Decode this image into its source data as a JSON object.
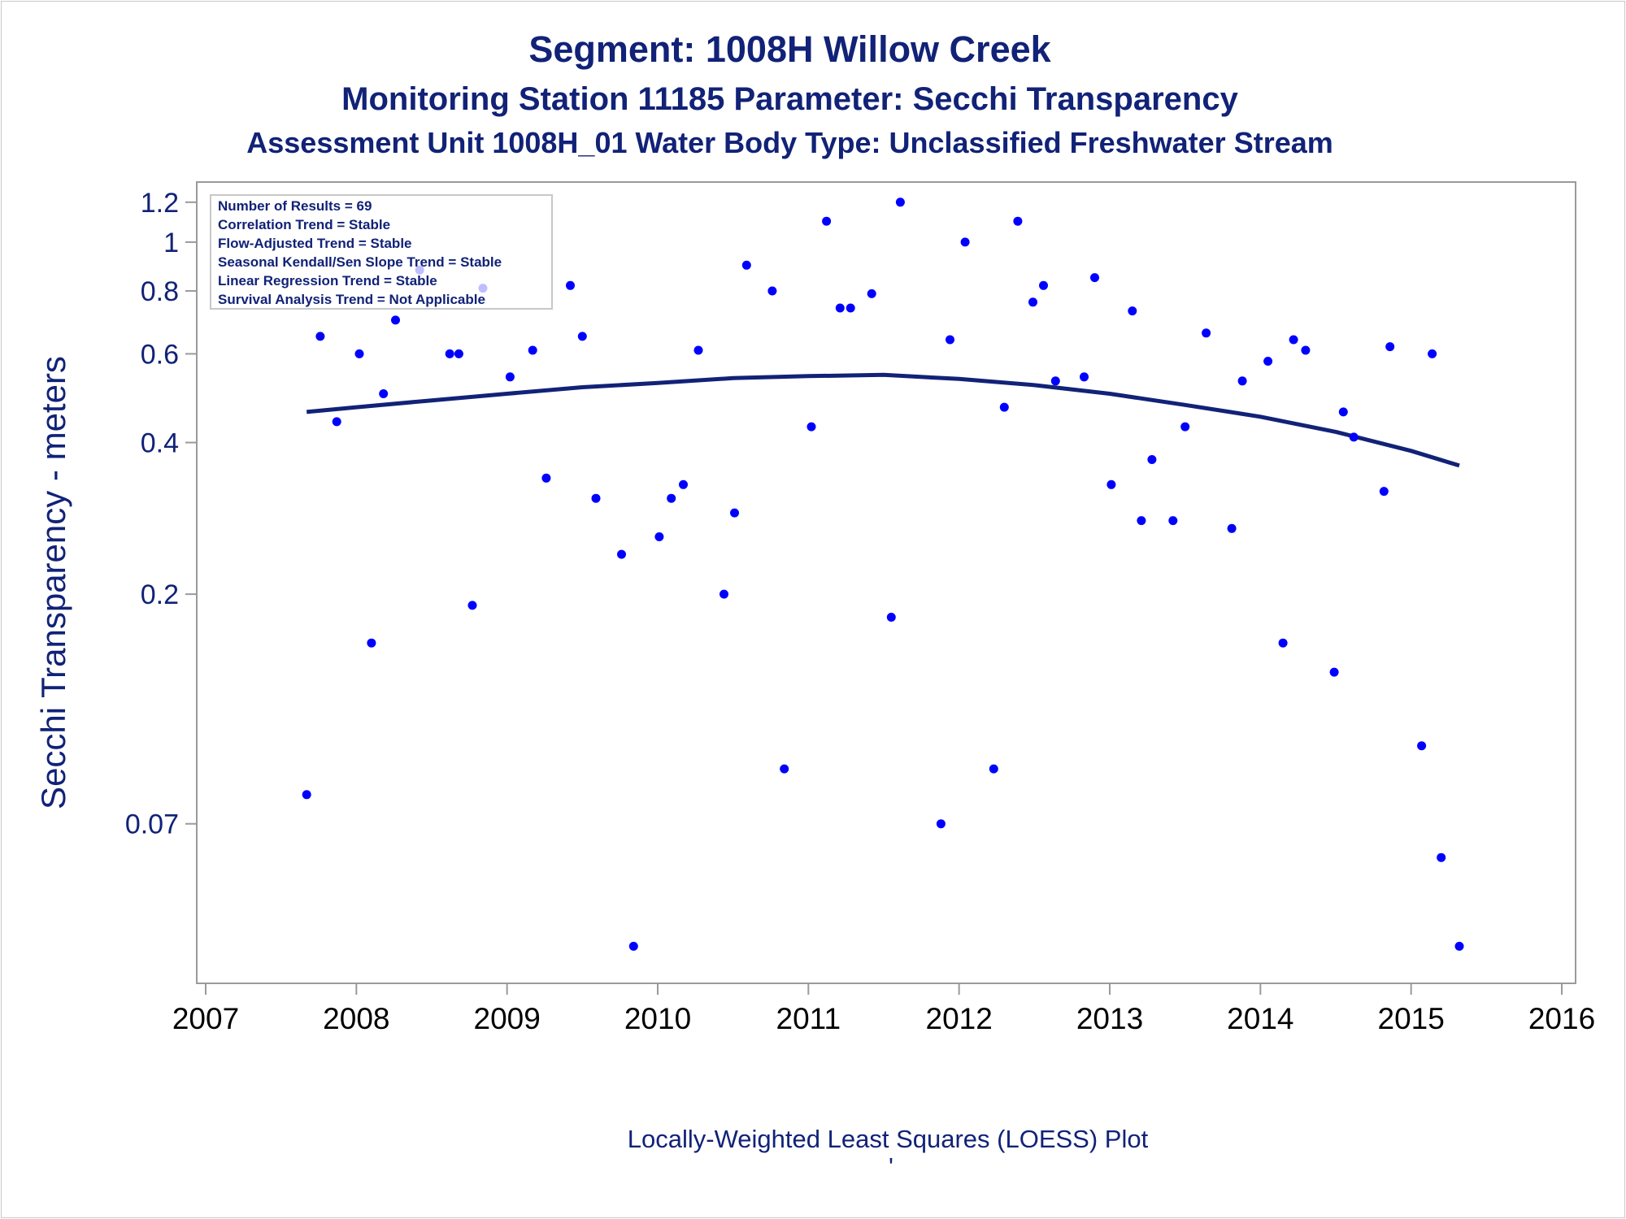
{
  "chart_data": {
    "type": "scatter",
    "title": "Segment: 1008H  Willow Creek",
    "subtitle_lines": [
      "Monitoring Station 11185 Parameter: Secchi Transparency",
      "Assessment Unit 1008H_01   Water Body Type: Unclassified Freshwater Stream"
    ],
    "xlabel": "",
    "ylabel": "Secchi Transparency - meters",
    "footnote": "Locally-Weighted Least Squares (LOESS) Plot",
    "footnote_mark": "'",
    "y_scale": "log",
    "xlim": [
      2007,
      2016
    ],
    "ylim": [
      0.0353,
      1.24
    ],
    "x_tick_labels": [
      "2007",
      "2008",
      "2009",
      "2010",
      "2011",
      "2012",
      "2013",
      "2014",
      "2015",
      "2016"
    ],
    "y_tick_labels": [
      "1.2",
      "1",
      "0.8",
      "0.6",
      "0.4",
      "0.2",
      "0.07"
    ],
    "y_tick_values": [
      1.2,
      1.0,
      0.8,
      0.6,
      0.4,
      0.2,
      0.07
    ],
    "grid": false,
    "legend_box": {
      "position": "top-left",
      "lines": [
        "Number of Results = 69",
        "Correlation Trend = Stable",
        "Flow-Adjusted Trend = Stable",
        "Seasonal Kendall/Sen Slope Trend = Stable",
        "Linear Regression Trend = Stable",
        "Survival Analysis Trend = Not Applicable"
      ]
    },
    "series": [
      {
        "kind": "scatter",
        "color": "#0000ff",
        "points": [
          [
            2007.67,
            0.08
          ],
          [
            2007.76,
            0.65
          ],
          [
            2007.87,
            0.44
          ],
          [
            2008.02,
            0.6
          ],
          [
            2008.1,
            0.16
          ],
          [
            2008.18,
            0.5
          ],
          [
            2008.26,
            0.7
          ],
          [
            2008.42,
            0.88
          ],
          [
            2008.62,
            0.6
          ],
          [
            2008.68,
            0.6
          ],
          [
            2008.77,
            0.19
          ],
          [
            2008.84,
            0.81
          ],
          [
            2009.02,
            0.54
          ],
          [
            2009.17,
            0.61
          ],
          [
            2009.26,
            0.34
          ],
          [
            2009.42,
            0.82
          ],
          [
            2009.5,
            0.65
          ],
          [
            2009.59,
            0.31
          ],
          [
            2009.76,
            0.24
          ],
          [
            2009.84,
            0.04
          ],
          [
            2010.01,
            0.26
          ],
          [
            2010.09,
            0.31
          ],
          [
            2010.17,
            0.33
          ],
          [
            2010.27,
            0.61
          ],
          [
            2010.44,
            0.2
          ],
          [
            2010.51,
            0.29
          ],
          [
            2010.59,
            0.9
          ],
          [
            2010.76,
            0.8
          ],
          [
            2010.84,
            0.09
          ],
          [
            2011.02,
            0.43
          ],
          [
            2011.12,
            1.1
          ],
          [
            2011.21,
            0.74
          ],
          [
            2011.28,
            0.74
          ],
          [
            2011.42,
            0.79
          ],
          [
            2011.55,
            0.18
          ],
          [
            2011.61,
            1.2
          ],
          [
            2011.88,
            0.07
          ],
          [
            2011.94,
            0.64
          ],
          [
            2012.04,
            1.0
          ],
          [
            2012.23,
            0.09
          ],
          [
            2012.3,
            0.47
          ],
          [
            2012.39,
            1.1
          ],
          [
            2012.49,
            0.76
          ],
          [
            2012.56,
            0.82
          ],
          [
            2012.64,
            0.53
          ],
          [
            2012.83,
            0.54
          ],
          [
            2012.9,
            0.85
          ],
          [
            2013.01,
            0.33
          ],
          [
            2013.15,
            0.73
          ],
          [
            2013.21,
            0.28
          ],
          [
            2013.28,
            0.37
          ],
          [
            2013.42,
            0.28
          ],
          [
            2013.5,
            0.43
          ],
          [
            2013.64,
            0.66
          ],
          [
            2013.81,
            0.27
          ],
          [
            2013.88,
            0.53
          ],
          [
            2014.05,
            0.58
          ],
          [
            2014.15,
            0.16
          ],
          [
            2014.22,
            0.64
          ],
          [
            2014.3,
            0.61
          ],
          [
            2014.49,
            0.14
          ],
          [
            2014.55,
            0.46
          ],
          [
            2014.62,
            0.41
          ],
          [
            2014.82,
            0.32
          ],
          [
            2014.86,
            0.62
          ],
          [
            2015.07,
            0.1
          ],
          [
            2015.14,
            0.6
          ],
          [
            2015.2,
            0.06
          ],
          [
            2015.32,
            0.04
          ]
        ]
      },
      {
        "kind": "line",
        "color": "#112277",
        "points": [
          [
            2007.67,
            0.46
          ],
          [
            2008.0,
            0.47
          ],
          [
            2008.5,
            0.485
          ],
          [
            2009.0,
            0.5
          ],
          [
            2009.5,
            0.515
          ],
          [
            2010.0,
            0.525
          ],
          [
            2010.5,
            0.537
          ],
          [
            2011.0,
            0.542
          ],
          [
            2011.5,
            0.545
          ],
          [
            2012.0,
            0.535
          ],
          [
            2012.5,
            0.52
          ],
          [
            2013.0,
            0.5
          ],
          [
            2013.5,
            0.475
          ],
          [
            2014.0,
            0.45
          ],
          [
            2014.5,
            0.42
          ],
          [
            2015.0,
            0.385
          ],
          [
            2015.32,
            0.36
          ]
        ]
      }
    ]
  }
}
